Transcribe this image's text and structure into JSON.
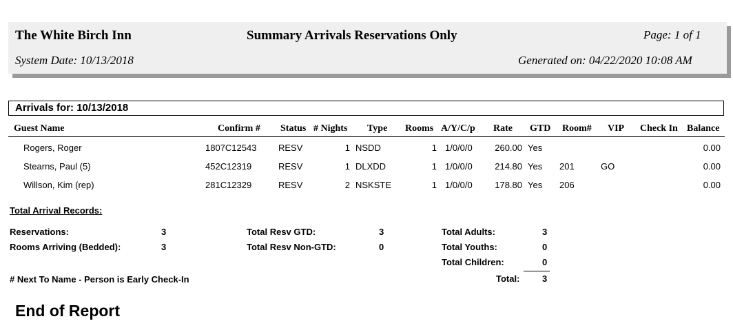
{
  "header": {
    "inn_name": "The White Birch Inn",
    "report_title": "Summary Arrivals Reservations Only",
    "page": "Page:  1 of 1",
    "system_date": "System Date:  10/13/2018",
    "generated_on": "Generated on:  04/22/2020 10:08 AM"
  },
  "arrivals_for": "Arrivals for:  10/13/2018",
  "columns": [
    "Guest Name",
    "Confirm #",
    "Status",
    "# Nights",
    "Type",
    "Rooms",
    "A/Y/C/p",
    "Rate",
    "GTD",
    "Room#",
    "VIP",
    "Check In",
    "Balance"
  ],
  "rows": [
    {
      "guest": "Rogers, Roger",
      "confirm": "1807C12543",
      "status": "RESV",
      "nights": "1",
      "type": "NSDD",
      "rooms": "1",
      "aycp": "1/0/0/0",
      "rate": "260.00",
      "gtd": "Yes",
      "room": "",
      "vip": "",
      "checkin": "",
      "balance": "0.00"
    },
    {
      "guest": "Stearns, Paul (5)",
      "confirm": "452C12319",
      "status": "RESV",
      "nights": "1",
      "type": "DLXDD",
      "rooms": "1",
      "aycp": "1/0/0/0",
      "rate": "214.80",
      "gtd": "Yes",
      "room": "201",
      "vip": "GO",
      "checkin": "",
      "balance": "0.00"
    },
    {
      "guest": "Willson, Kim (rep)",
      "confirm": "281C12329",
      "status": "RESV",
      "nights": "2",
      "type": "NSKSTE",
      "rooms": "1",
      "aycp": "1/0/0/0",
      "rate": "178.80",
      "gtd": "Yes",
      "room": "206",
      "vip": "",
      "checkin": "",
      "balance": "0.00"
    }
  ],
  "totals": {
    "heading": "Total Arrival Records:",
    "reservations_label": "Reservations:",
    "reservations": "3",
    "rooms_arriving_label": "Rooms Arriving (Bedded):",
    "rooms_arriving": "3",
    "resv_gtd_label": "Total Resv GTD:",
    "resv_gtd": "3",
    "resv_non_gtd_label": "Total Resv Non-GTD:",
    "resv_non_gtd": "0",
    "adults_label": "Total Adults:",
    "adults": "3",
    "youths_label": "Total Youths:",
    "youths": "0",
    "children_label": "Total Children:",
    "children": "0",
    "total_label": "Total:",
    "total": "3"
  },
  "footnote": "# Next To Name  -  Person is Early Check-In",
  "end_text": "End of Report"
}
